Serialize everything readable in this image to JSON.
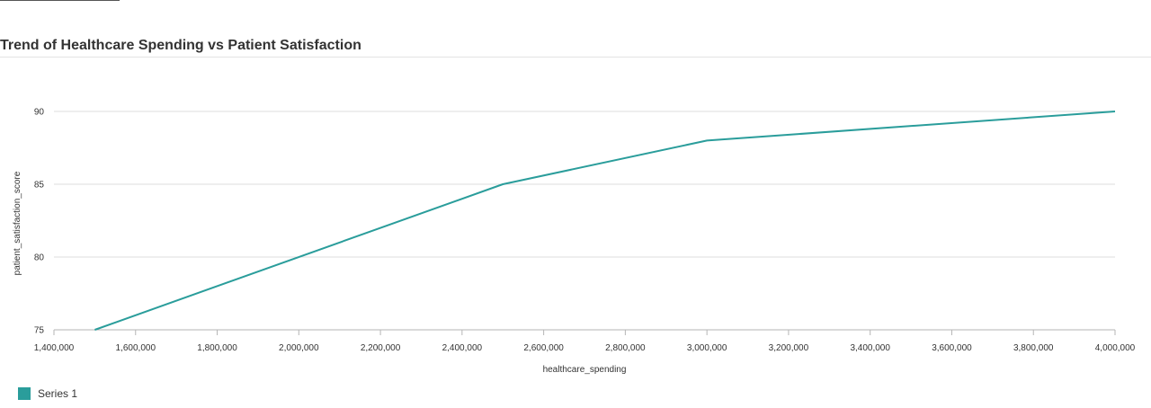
{
  "chart_data": {
    "type": "line",
    "title": "Trend of Healthcare Spending vs Patient Satisfaction",
    "xlabel": "healthcare_spending",
    "ylabel": "patient_satisfaction_score",
    "xlim": [
      1400000,
      4000000
    ],
    "ylim": [
      75,
      92
    ],
    "x_ticks": [
      1400000,
      1600000,
      1800000,
      2000000,
      2200000,
      2400000,
      2600000,
      2800000,
      3000000,
      3200000,
      3400000,
      3600000,
      3800000,
      4000000
    ],
    "x_tick_labels": [
      "1,400,000",
      "1,600,000",
      "1,800,000",
      "2,000,000",
      "2,200,000",
      "2,400,000",
      "2,600,000",
      "2,800,000",
      "3,000,000",
      "3,200,000",
      "3,400,000",
      "3,600,000",
      "3,800,000",
      "4,000,000"
    ],
    "y_ticks": [
      75,
      80,
      85,
      90
    ],
    "y_tick_labels": [
      "75",
      "80",
      "85",
      "90"
    ],
    "grid": true,
    "legend_position": "bottom-left",
    "series": [
      {
        "name": "Series 1",
        "color": "#2a9d9b",
        "x": [
          1500000,
          2500000,
          3000000,
          4000000
        ],
        "y": [
          75,
          85,
          88,
          90
        ]
      }
    ]
  }
}
